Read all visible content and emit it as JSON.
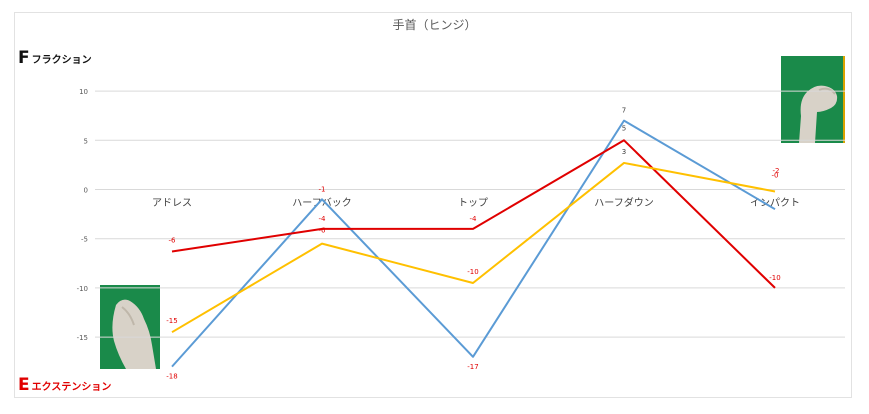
{
  "chart_data": {
    "type": "line",
    "title": "手首（ヒンジ）",
    "categories": [
      "アドレス",
      "ハーフバック",
      "トップ",
      "ハーフダウン",
      "インパクト"
    ],
    "ylim": [
      -18,
      10
    ],
    "yticks": [
      10,
      5,
      0,
      -5,
      -10,
      -15
    ],
    "grid": true,
    "series": [
      {
        "color": "#5b9bd5",
        "values": [
          -18,
          -1,
          -17,
          7,
          -2
        ],
        "labels": [
          "-18",
          "-1",
          "-17",
          "7",
          ""
        ],
        "label_color": "#e00000"
      },
      {
        "color": "#e00000",
        "values": [
          -6.3,
          -4,
          -4,
          5,
          -10
        ],
        "labels": [
          "-6",
          "-4",
          "-4",
          "5",
          "-10"
        ],
        "label_color": "#e00000"
      },
      {
        "color": "#ffc000",
        "values": [
          -14.5,
          -5.5,
          -9.5,
          2.7,
          -0.2
        ],
        "labels": [
          "-15",
          "-6",
          "-10",
          "3",
          "-0"
        ],
        "label_color": "#e00000"
      }
    ],
    "extra_labels": [
      "-2"
    ]
  },
  "corner": {
    "top_letter": "F",
    "top_text": "フラクション",
    "bottom_letter": "E",
    "bottom_text": "エクステンション"
  },
  "colors": {
    "accent_red": "#e00000",
    "photo_bg": "#1a8a4a"
  }
}
